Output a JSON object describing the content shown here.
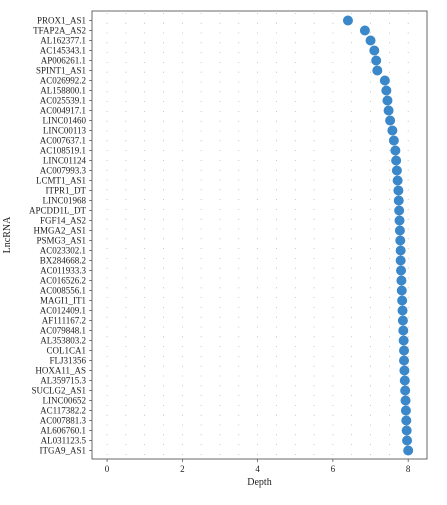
{
  "chart_data": {
    "type": "scatter",
    "title": "",
    "xlabel": "Depth",
    "ylabel": "LncRNA",
    "xlim": [
      -0.4,
      8.5
    ],
    "xticks": [
      0,
      2,
      4,
      6,
      8
    ],
    "grid": true,
    "grid_style": "dotted",
    "marker_color": "#3a87c9",
    "categories": [
      "PROX1_AS1",
      "TFAP2A_AS2",
      "AL162377.1",
      "AC145343.1",
      "AP006261.1",
      "SPINT1_AS1",
      "AC026992.2",
      "AL158800.1",
      "AC025539.1",
      "AC004917.1",
      "LINC01460",
      "LINC00113",
      "AC007637.1",
      "AC108519.1",
      "LINC01124",
      "AC007993.3",
      "LCMT1_AS1",
      "ITPR1_DT",
      "LINC01968",
      "APCDD1L_DT",
      "FGF14_AS2",
      "HMGA2_AS1",
      "PSMG3_AS1",
      "AC023302.1",
      "BX284668.2",
      "AC011933.3",
      "AC016526.2",
      "AC008556.1",
      "MAGI1_IT1",
      "AC012409.1",
      "AF111167.2",
      "AC079848.1",
      "AL353803.2",
      "COL1CA1",
      "FLJ31356",
      "HOXA11_AS",
      "AL359715.3",
      "SUCLG2_AS1",
      "LINC00652",
      "AC117382.2",
      "AC007881.3",
      "AL606760.1",
      "AL031123.5",
      "ITGA9_AS1"
    ],
    "values": [
      6.4,
      6.85,
      7.0,
      7.1,
      7.15,
      7.18,
      7.38,
      7.42,
      7.45,
      7.48,
      7.52,
      7.58,
      7.62,
      7.66,
      7.68,
      7.7,
      7.72,
      7.74,
      7.75,
      7.76,
      7.77,
      7.78,
      7.79,
      7.8,
      7.8,
      7.81,
      7.82,
      7.83,
      7.84,
      7.85,
      7.86,
      7.87,
      7.88,
      7.89,
      7.89,
      7.9,
      7.91,
      7.92,
      7.93,
      7.94,
      7.95,
      7.96,
      7.97,
      8.0
    ]
  }
}
